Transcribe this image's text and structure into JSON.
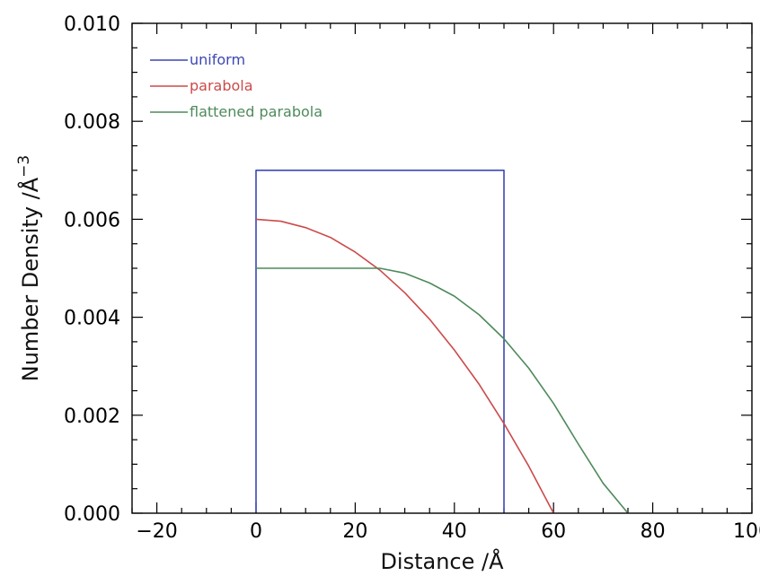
{
  "chart_data": {
    "type": "line",
    "xlabel": "Distance /Å",
    "ylabel": "Number Density /Å",
    "ylabel_superscript": "−3",
    "xlim": [
      -25,
      100
    ],
    "ylim": [
      0,
      0.01
    ],
    "xticks": [
      -20,
      0,
      20,
      40,
      60,
      80,
      100
    ],
    "xtick_labels": [
      "−20",
      "0",
      "20",
      "40",
      "60",
      "80",
      "100"
    ],
    "yticks": [
      0,
      0.002,
      0.004,
      0.006,
      0.008,
      0.01
    ],
    "ytick_labels": [
      "0.000",
      "0.002",
      "0.004",
      "0.006",
      "0.008",
      "0.010"
    ],
    "legend_position": "top-left",
    "grid": false,
    "series": [
      {
        "name": "uniform",
        "color": "#3c47b4",
        "x": [
          0,
          0,
          50,
          50
        ],
        "y": [
          0,
          0.007,
          0.007,
          0
        ]
      },
      {
        "name": "parabola",
        "color": "#cc4a4a",
        "x": [
          0,
          5,
          10,
          15,
          20,
          25,
          30,
          35,
          40,
          45,
          50,
          55,
          60
        ],
        "y": [
          0.006,
          0.00596,
          0.00583,
          0.00563,
          0.00533,
          0.00496,
          0.0045,
          0.00396,
          0.00333,
          0.00263,
          0.00183,
          0.00096,
          0
        ]
      },
      {
        "name": "flattened parabola",
        "color": "#4f8a5b",
        "x": [
          0,
          15,
          25,
          30,
          35,
          40,
          45,
          50,
          55,
          60,
          65,
          70,
          75
        ],
        "y": [
          0.005,
          0.005,
          0.005,
          0.0049,
          0.0047,
          0.00443,
          0.00405,
          0.00356,
          0.00296,
          0.00224,
          0.00141,
          0.00061,
          0
        ]
      }
    ]
  }
}
